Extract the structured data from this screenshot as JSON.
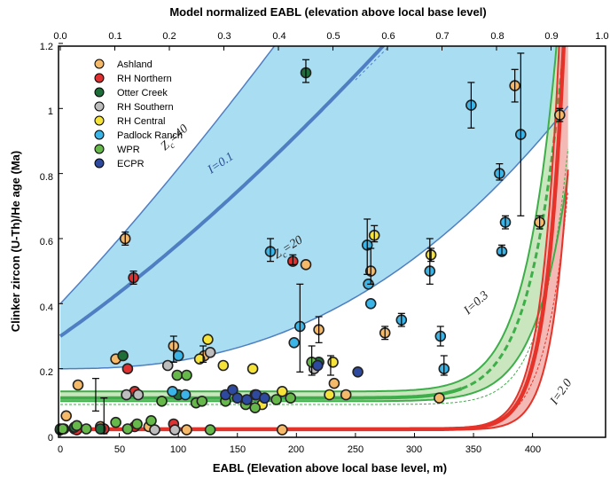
{
  "chart_data": {
    "type": "scatter",
    "xlabel": "EABL (Elevation above local base level, m)",
    "ylabel": "Clinker zircon (U-Th)/He age (Ma)",
    "x2label": "Model normalized EABL (elevation above local base level)",
    "xlim": [
      0,
      430
    ],
    "ylim": [
      0,
      1.2
    ],
    "x2lim": [
      0,
      1
    ],
    "x_ticks": [
      "0",
      "50",
      "100",
      "150",
      "200",
      "250",
      "300",
      "350",
      "400"
    ],
    "y_ticks": [
      "0",
      "0.2",
      "0.4",
      "0.6",
      "0.8",
      "1",
      "1.2"
    ],
    "x2_ticks": [
      "0.0",
      "0.1",
      "0.2",
      "0.3",
      "0.4",
      "0.5",
      "0.6",
      "0.7",
      "0.8",
      "0.9",
      "1.0"
    ],
    "grid": false,
    "legend_position": "top-left",
    "curve_labels": [
      "Z",
      "c",
      "=40",
      "I=0.1",
      "=20",
      "I=0.3",
      "I=2.0"
    ],
    "colors": {
      "blue_band": "#A8DDF2",
      "blue_line": "#4F7EC2",
      "green_band": "#C9E6BE",
      "green_line": "#3DAE49",
      "red_band": "#F4B9B4",
      "red_line": "#E5332A"
    },
    "series": [
      {
        "name": "Ashland",
        "color": "#F5B96A",
        "points": [
          [
            0,
            0.012
          ],
          [
            5,
            0.055
          ],
          [
            12,
            0.015
          ],
          [
            15,
            0.15
          ],
          [
            34,
            0.022
          ],
          [
            47,
            0.23
          ],
          [
            55,
            0.6
          ],
          [
            75,
            0.022
          ],
          [
            96,
            0.27
          ],
          [
            107,
            0.012
          ],
          [
            122,
            0.24
          ],
          [
            188,
            0.012
          ],
          [
            208,
            0.52
          ],
          [
            219,
            0.32
          ],
          [
            232,
            0.155
          ],
          [
            242,
            0.12
          ],
          [
            263,
            0.5
          ],
          [
            275,
            0.31
          ],
          [
            321,
            0.11
          ],
          [
            385,
            1.07
          ],
          [
            406,
            0.65
          ],
          [
            423,
            0.98
          ]
        ]
      },
      {
        "name": "RH Northern",
        "color": "#E03030",
        "points": [
          [
            0,
            0.012
          ],
          [
            3,
            0.015
          ],
          [
            14,
            0.012
          ],
          [
            37,
            0.015
          ],
          [
            57,
            0.2
          ],
          [
            62,
            0.48
          ],
          [
            63,
            0.13
          ],
          [
            63,
            0.022
          ],
          [
            96,
            0.03
          ],
          [
            197,
            0.53
          ]
        ]
      },
      {
        "name": "Otter Creek",
        "color": "#1E6E3A",
        "points": [
          [
            0,
            0.015
          ],
          [
            12,
            0.02
          ],
          [
            34,
            0.015
          ],
          [
            53,
            0.24
          ],
          [
            100,
            0.12
          ],
          [
            208,
            1.11
          ],
          [
            219,
            0.22
          ]
        ]
      },
      {
        "name": "RH Southern",
        "color": "#BDBDBD",
        "points": [
          [
            56,
            0.12
          ],
          [
            66,
            0.12
          ],
          [
            80,
            0.012
          ],
          [
            91,
            0.21
          ],
          [
            97,
            0.012
          ],
          [
            127,
            0.25
          ],
          [
            158,
            0.1
          ],
          [
            215,
            0.2
          ]
        ]
      },
      {
        "name": "RH Central",
        "color": "#F6E33A",
        "points": [
          [
            118,
            0.23
          ],
          [
            125,
            0.29
          ],
          [
            138,
            0.21
          ],
          [
            163,
            0.2
          ],
          [
            165,
            0.12
          ],
          [
            171,
            0.09
          ],
          [
            188,
            0.13
          ],
          [
            228,
            0.12
          ],
          [
            231,
            0.22
          ],
          [
            266,
            0.61
          ],
          [
            314,
            0.55
          ]
        ]
      },
      {
        "name": "Padlock Ranch",
        "color": "#3BB5E8",
        "points": [
          [
            95,
            0.13
          ],
          [
            100,
            0.24
          ],
          [
            106,
            0.12
          ],
          [
            178,
            0.56
          ],
          [
            198,
            0.28
          ],
          [
            203,
            0.33
          ],
          [
            260,
            0.58
          ],
          [
            261,
            0.46
          ],
          [
            263,
            0.4
          ],
          [
            289,
            0.35
          ],
          [
            313,
            0.5
          ],
          [
            322,
            0.3
          ],
          [
            325,
            0.2
          ],
          [
            348,
            1.01
          ],
          [
            372,
            0.8
          ],
          [
            374,
            0.56
          ],
          [
            377,
            0.65
          ],
          [
            390,
            0.92
          ]
        ]
      },
      {
        "name": "WPR",
        "color": "#66B84A",
        "points": [
          [
            2,
            0.015
          ],
          [
            14,
            0.025
          ],
          [
            22,
            0.015
          ],
          [
            47,
            0.035
          ],
          [
            57,
            0.015
          ],
          [
            65,
            0.03
          ],
          [
            77,
            0.04
          ],
          [
            86,
            0.1
          ],
          [
            99,
            0.18
          ],
          [
            107,
            0.18
          ],
          [
            115,
            0.095
          ],
          [
            120,
            0.1
          ],
          [
            127,
            0.012
          ],
          [
            140,
            0.1
          ],
          [
            157,
            0.09
          ],
          [
            165,
            0.08
          ],
          [
            173,
            0.11
          ],
          [
            183,
            0.105
          ],
          [
            195,
            0.11
          ],
          [
            213,
            0.22
          ]
        ]
      },
      {
        "name": "ECPR",
        "color": "#2E4A9E",
        "points": [
          [
            140,
            0.12
          ],
          [
            146,
            0.135
          ],
          [
            150,
            0.11
          ],
          [
            158,
            0.105
          ],
          [
            166,
            0.12
          ],
          [
            173,
            0.11
          ],
          [
            218,
            0.21
          ],
          [
            252,
            0.19
          ]
        ]
      }
    ]
  }
}
